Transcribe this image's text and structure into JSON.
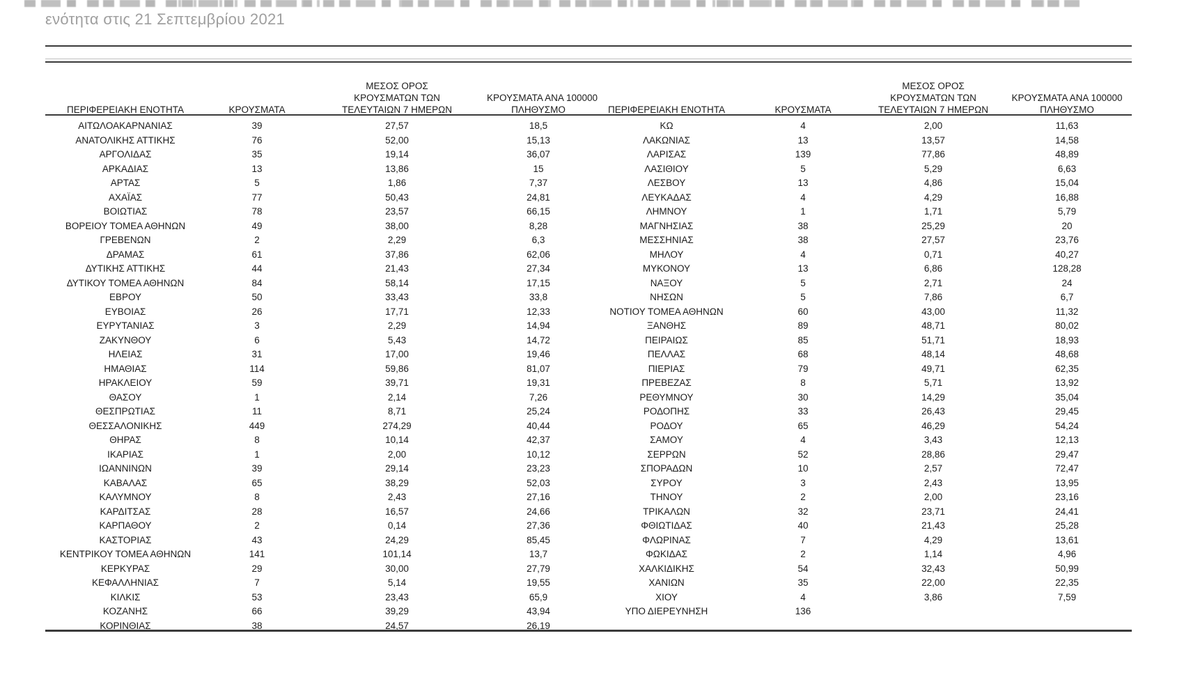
{
  "caption": "ενότητα στις 21 Σεπτεμβρίου 2021",
  "table": {
    "columns": {
      "region": [
        "ΠΕΡΙΦΕΡΕΙΑΚΗ ΕΝΟΤΗΤΑ"
      ],
      "cases": [
        "ΚΡΟΥΣΜΑΤΑ"
      ],
      "avg7": [
        "ΜΕΣΟΣ ΟΡΟΣ",
        "ΚΡΟΥΣΜΑΤΩΝ ΤΩΝ",
        "ΤΕΛΕΥΤΑΙΩΝ 7 ΗΜΕΡΩΝ"
      ],
      "per100k": [
        "ΚΡΟΥΣΜΑΤΑ ΑΝΑ 100000",
        "ΠΛΗΘΥΣΜΟ"
      ]
    },
    "left_rows": [
      [
        "ΑΙΤΩΛΟΑΚΑΡΝΑΝΙΑΣ",
        "39",
        "27,57",
        "18,5"
      ],
      [
        "ΑΝΑΤΟΛΙΚΗΣ ΑΤΤΙΚΗΣ",
        "76",
        "52,00",
        "15,13"
      ],
      [
        "ΑΡΓΟΛΙΔΑΣ",
        "35",
        "19,14",
        "36,07"
      ],
      [
        "ΑΡΚΑΔΙΑΣ",
        "13",
        "13,86",
        "15"
      ],
      [
        "ΑΡΤΑΣ",
        "5",
        "1,86",
        "7,37"
      ],
      [
        "ΑΧΑΪΑΣ",
        "77",
        "50,43",
        "24,81"
      ],
      [
        "ΒΟΙΩΤΙΑΣ",
        "78",
        "23,57",
        "66,15"
      ],
      [
        "ΒΟΡΕΙΟΥ ΤΟΜΕΑ ΑΘΗΝΩΝ",
        "49",
        "38,00",
        "8,28"
      ],
      [
        "ΓΡΕΒΕΝΩΝ",
        "2",
        "2,29",
        "6,3"
      ],
      [
        "ΔΡΑΜΑΣ",
        "61",
        "37,86",
        "62,06"
      ],
      [
        "ΔΥΤΙΚΗΣ ΑΤΤΙΚΗΣ",
        "44",
        "21,43",
        "27,34"
      ],
      [
        "ΔΥΤΙΚΟΥ ΤΟΜΕΑ ΑΘΗΝΩΝ",
        "84",
        "58,14",
        "17,15"
      ],
      [
        "ΕΒΡΟΥ",
        "50",
        "33,43",
        "33,8"
      ],
      [
        "ΕΥΒΟΙΑΣ",
        "26",
        "17,71",
        "12,33"
      ],
      [
        "ΕΥΡΥΤΑΝΙΑΣ",
        "3",
        "2,29",
        "14,94"
      ],
      [
        "ΖΑΚΥΝΘΟΥ",
        "6",
        "5,43",
        "14,72"
      ],
      [
        "ΗΛΕΙΑΣ",
        "31",
        "17,00",
        "19,46"
      ],
      [
        "ΗΜΑΘΙΑΣ",
        "114",
        "59,86",
        "81,07"
      ],
      [
        "ΗΡΑΚΛΕΙΟΥ",
        "59",
        "39,71",
        "19,31"
      ],
      [
        "ΘΑΣΟΥ",
        "1",
        "2,14",
        "7,26"
      ],
      [
        "ΘΕΣΠΡΩΤΙΑΣ",
        "11",
        "8,71",
        "25,24"
      ],
      [
        "ΘΕΣΣΑΛΟΝΙΚΗΣ",
        "449",
        "274,29",
        "40,44"
      ],
      [
        "ΘΗΡΑΣ",
        "8",
        "10,14",
        "42,37"
      ],
      [
        "ΙΚΑΡΙΑΣ",
        "1",
        "2,00",
        "10,12"
      ],
      [
        "ΙΩΑΝΝΙΝΩΝ",
        "39",
        "29,14",
        "23,23"
      ],
      [
        "ΚΑΒΑΛΑΣ",
        "65",
        "38,29",
        "52,03"
      ],
      [
        "ΚΑΛΥΜΝΟΥ",
        "8",
        "2,43",
        "27,16"
      ],
      [
        "ΚΑΡΔΙΤΣΑΣ",
        "28",
        "16,57",
        "24,66"
      ],
      [
        "ΚΑΡΠΑΘΟΥ",
        "2",
        "0,14",
        "27,36"
      ],
      [
        "ΚΑΣΤΟΡΙΑΣ",
        "43",
        "24,29",
        "85,45"
      ],
      [
        "ΚΕΝΤΡΙΚΟΥ ΤΟΜΕΑ ΑΘΗΝΩΝ",
        "141",
        "101,14",
        "13,7"
      ],
      [
        "ΚΕΡΚΥΡΑΣ",
        "29",
        "30,00",
        "27,79"
      ],
      [
        "ΚΕΦΑΛΛΗΝΙΑΣ",
        "7",
        "5,14",
        "19,55"
      ],
      [
        "ΚΙΛΚΙΣ",
        "53",
        "23,43",
        "65,9"
      ],
      [
        "ΚΟΖΑΝΗΣ",
        "66",
        "39,29",
        "43,94"
      ],
      [
        "ΚΟΡΙΝΘΙΑΣ",
        "38",
        "24,57",
        "26,19"
      ]
    ],
    "right_rows": [
      [
        "ΚΩ",
        "4",
        "2,00",
        "11,63"
      ],
      [
        "ΛΑΚΩΝΙΑΣ",
        "13",
        "13,57",
        "14,58"
      ],
      [
        "ΛΑΡΙΣΑΣ",
        "139",
        "77,86",
        "48,89"
      ],
      [
        "ΛΑΣΙΘΙΟΥ",
        "5",
        "5,29",
        "6,63"
      ],
      [
        "ΛΕΣΒΟΥ",
        "13",
        "4,86",
        "15,04"
      ],
      [
        "ΛΕΥΚΑΔΑΣ",
        "4",
        "4,29",
        "16,88"
      ],
      [
        "ΛΗΜΝΟΥ",
        "1",
        "1,71",
        "5,79"
      ],
      [
        "ΜΑΓΝΗΣΙΑΣ",
        "38",
        "25,29",
        "20"
      ],
      [
        "ΜΕΣΣΗΝΙΑΣ",
        "38",
        "27,57",
        "23,76"
      ],
      [
        "ΜΗΛΟΥ",
        "4",
        "0,71",
        "40,27"
      ],
      [
        "ΜΥΚΟΝΟΥ",
        "13",
        "6,86",
        "128,28"
      ],
      [
        "ΝΑΞΟΥ",
        "5",
        "2,71",
        "24"
      ],
      [
        "ΝΗΣΩΝ",
        "5",
        "7,86",
        "6,7"
      ],
      [
        "ΝΟΤΙΟΥ ΤΟΜΕΑ ΑΘΗΝΩΝ",
        "60",
        "43,00",
        "11,32"
      ],
      [
        "ΞΑΝΘΗΣ",
        "89",
        "48,71",
        "80,02"
      ],
      [
        "ΠΕΙΡΑΙΩΣ",
        "85",
        "51,71",
        "18,93"
      ],
      [
        "ΠΕΛΛΑΣ",
        "68",
        "48,14",
        "48,68"
      ],
      [
        "ΠΙΕΡΙΑΣ",
        "79",
        "49,71",
        "62,35"
      ],
      [
        "ΠΡΕΒΕΖΑΣ",
        "8",
        "5,71",
        "13,92"
      ],
      [
        "ΡΕΘΥΜΝΟΥ",
        "30",
        "14,29",
        "35,04"
      ],
      [
        "ΡΟΔΟΠΗΣ",
        "33",
        "26,43",
        "29,45"
      ],
      [
        "ΡΟΔΟΥ",
        "65",
        "46,29",
        "54,24"
      ],
      [
        "ΣΑΜΟΥ",
        "4",
        "3,43",
        "12,13"
      ],
      [
        "ΣΕΡΡΩΝ",
        "52",
        "28,86",
        "29,47"
      ],
      [
        "ΣΠΟΡΑΔΩΝ",
        "10",
        "2,57",
        "72,47"
      ],
      [
        "ΣΥΡΟΥ",
        "3",
        "2,43",
        "13,95"
      ],
      [
        "ΤΗΝΟΥ",
        "2",
        "2,00",
        "23,16"
      ],
      [
        "ΤΡΙΚΑΛΩΝ",
        "32",
        "23,71",
        "24,41"
      ],
      [
        "ΦΘΙΩΤΙΔΑΣ",
        "40",
        "21,43",
        "25,28"
      ],
      [
        "ΦΛΩΡΙΝΑΣ",
        "7",
        "4,29",
        "13,61"
      ],
      [
        "ΦΩΚΙΔΑΣ",
        "2",
        "1,14",
        "4,96"
      ],
      [
        "ΧΑΛΚΙΔΙΚΗΣ",
        "54",
        "32,43",
        "50,99"
      ],
      [
        "ΧΑΝΙΩΝ",
        "35",
        "22,00",
        "22,35"
      ],
      [
        "ΧΙΟΥ",
        "4",
        "3,86",
        "7,59"
      ],
      [
        "ΥΠΟ ΔΙΕΡΕΥΝΗΣΗ",
        "136",
        "",
        ""
      ]
    ]
  },
  "colors": {
    "text": "#1c1c1c",
    "caption": "#9f9f9f",
    "rule": "#3b3b3b"
  }
}
